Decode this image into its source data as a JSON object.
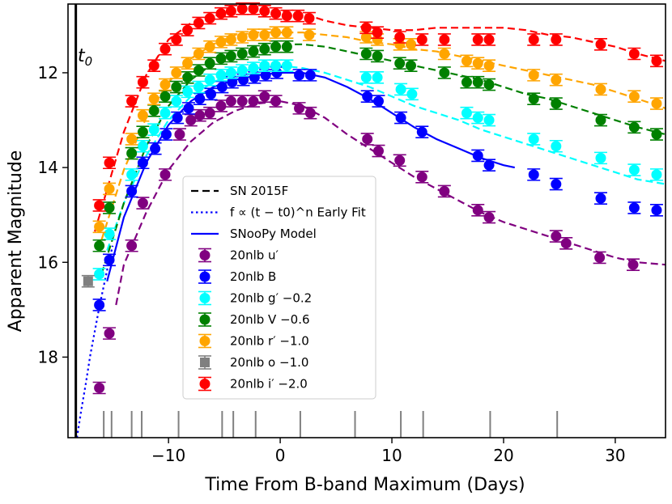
{
  "chart_data": {
    "type": "scatter",
    "xlabel": "Time From B-band Maximum (Days)",
    "ylabel": "Apparent Magnitude",
    "xlim": [
      -19,
      34.5
    ],
    "ylim": [
      19.7,
      10.55
    ],
    "y_inverted": true,
    "grid": false,
    "x_ticks": [
      -10,
      0,
      10,
      20,
      30
    ],
    "x_tick_labels": [
      "−10",
      "0",
      "10",
      "20",
      "30"
    ],
    "y_ticks": [
      12,
      14,
      16,
      18
    ],
    "y_tick_labels": [
      "12",
      "14",
      "16",
      "18"
    ],
    "t0_marker": {
      "x": -18.3,
      "label": "t0"
    },
    "spectra_epochs": [
      -15.8,
      -15.1,
      -13.3,
      -12.4,
      -9.1,
      -5.2,
      -4.2,
      -2.2,
      1.8,
      6.7,
      10.8,
      12.8,
      18.8,
      24.8
    ],
    "legend": {
      "position": "center-left",
      "entries": [
        {
          "label": "SN 2015F",
          "style": "dashed",
          "color": "#000000"
        },
        {
          "label": "f ∝ (t − t0)^n Early Fit",
          "style": "dotted",
          "color": "#0000ff"
        },
        {
          "label": "SNooPy Model",
          "style": "solid",
          "color": "#0000ff"
        },
        {
          "label": "20nlb u′",
          "marker": "circle",
          "color": "#800080"
        },
        {
          "label": "20nlb B",
          "marker": "circle",
          "color": "#0000ff"
        },
        {
          "label": "20nlb g′ −0.2",
          "marker": "circle",
          "color": "#00ffff"
        },
        {
          "label": "20nlb V −0.6",
          "marker": "circle",
          "color": "#008000"
        },
        {
          "label": "20nlb r′ −1.0",
          "marker": "circle",
          "color": "#ffa500"
        },
        {
          "label": "20nlb o −1.0",
          "marker": "square",
          "color": "#808080"
        },
        {
          "label": "20nlb i′ −2.0",
          "marker": "circle",
          "color": "#ff0000"
        }
      ]
    },
    "series": [
      {
        "name": "20nlb u′",
        "color": "#800080",
        "marker": "circle",
        "x": [
          -16.2,
          -15.3,
          -13.3,
          -12.3,
          -10.3,
          -9.0,
          -8.0,
          -7.2,
          -6.3,
          -5.3,
          -4.4,
          -3.4,
          -2.4,
          -1.4,
          -0.4,
          1.7,
          2.7,
          7.8,
          8.8,
          10.7,
          12.7,
          14.7,
          17.7,
          18.7,
          24.7,
          25.6,
          28.6,
          31.6
        ],
        "y": [
          18.65,
          17.5,
          15.65,
          14.75,
          14.15,
          13.3,
          13.0,
          12.9,
          12.85,
          12.7,
          12.6,
          12.6,
          12.6,
          12.5,
          12.6,
          12.75,
          12.85,
          13.4,
          13.65,
          13.85,
          14.2,
          14.5,
          14.9,
          15.05,
          15.45,
          15.6,
          15.9,
          16.05
        ],
        "curve_x": [
          -14.7,
          -14,
          -12,
          -10,
          -8,
          -6,
          -4,
          -2,
          0,
          2,
          4,
          6,
          8,
          10,
          12,
          14,
          16,
          18,
          20,
          22,
          24,
          26,
          28,
          30,
          32,
          34.5
        ],
        "curve_y": [
          16.9,
          16.05,
          14.95,
          14.05,
          13.45,
          13.05,
          12.8,
          12.65,
          12.6,
          12.7,
          12.95,
          13.3,
          13.6,
          13.9,
          14.2,
          14.45,
          14.7,
          14.95,
          15.15,
          15.3,
          15.45,
          15.6,
          15.75,
          15.9,
          16.0,
          16.05
        ]
      },
      {
        "name": "20nlb B",
        "color": "#0000ff",
        "marker": "circle",
        "x": [
          -16.2,
          -15.3,
          -13.3,
          -12.3,
          -11.2,
          -10.2,
          -9.2,
          -8.2,
          -7.2,
          -6.2,
          -5.2,
          -4.3,
          -3.3,
          -2.3,
          -1.3,
          -0.3,
          1.7,
          2.7,
          7.8,
          8.8,
          10.8,
          12.7,
          17.7,
          18.7,
          22.7,
          24.7,
          28.7,
          31.7,
          33.7
        ],
        "y": [
          16.9,
          15.95,
          14.5,
          13.9,
          13.6,
          13.3,
          12.95,
          12.75,
          12.55,
          12.45,
          12.3,
          12.2,
          12.15,
          12.1,
          12.05,
          12.0,
          12.05,
          12.05,
          12.5,
          12.6,
          12.95,
          13.25,
          13.75,
          13.95,
          14.15,
          14.35,
          14.65,
          14.85,
          14.9
        ]
      },
      {
        "name": "20nlb g′ −0.2",
        "color": "#00ffff",
        "marker": "circle",
        "x": [
          -16.2,
          -15.3,
          -13.3,
          -12.3,
          -11.3,
          -10.3,
          -9.3,
          -8.3,
          -7.3,
          -6.3,
          -5.3,
          -4.4,
          -3.4,
          -2.4,
          -1.4,
          -0.4,
          0.6,
          7.7,
          8.7,
          10.8,
          11.8,
          16.7,
          17.7,
          18.7,
          22.7,
          24.7,
          28.7,
          31.7,
          33.7
        ],
        "y": [
          16.25,
          15.4,
          14.15,
          13.55,
          13.2,
          12.85,
          12.6,
          12.4,
          12.3,
          12.15,
          12.05,
          12.0,
          11.95,
          11.9,
          11.85,
          11.85,
          11.85,
          12.1,
          12.1,
          12.35,
          12.45,
          12.85,
          12.95,
          13.0,
          13.4,
          13.55,
          13.8,
          14.05,
          14.15
        ],
        "curve_x": [
          -15.5,
          -14,
          -12,
          -10,
          -8,
          -6,
          -4,
          -2,
          0,
          2,
          4,
          6,
          8,
          10,
          12,
          14,
          16,
          18,
          20,
          22,
          24,
          26,
          28,
          30,
          32,
          34.5
        ],
        "curve_y": [
          15.75,
          14.75,
          13.75,
          13.0,
          12.5,
          12.2,
          12.0,
          11.9,
          11.85,
          11.9,
          12.0,
          12.15,
          12.3,
          12.5,
          12.7,
          12.85,
          13.0,
          13.2,
          13.35,
          13.5,
          13.65,
          13.8,
          13.95,
          14.1,
          14.25,
          14.35
        ]
      },
      {
        "name": "20nlb V −0.6",
        "color": "#008000",
        "marker": "circle",
        "x": [
          -16.2,
          -15.3,
          -13.3,
          -12.3,
          -11.3,
          -10.3,
          -9.3,
          -8.3,
          -7.3,
          -6.3,
          -5.3,
          -4.4,
          -3.4,
          -2.4,
          -1.4,
          -0.4,
          0.6,
          7.7,
          8.7,
          10.7,
          11.7,
          14.7,
          16.7,
          17.7,
          18.7,
          22.7,
          24.7,
          28.7,
          31.7,
          33.7
        ],
        "y": [
          15.65,
          14.85,
          13.7,
          13.25,
          12.8,
          12.5,
          12.3,
          12.1,
          11.95,
          11.8,
          11.7,
          11.65,
          11.6,
          11.55,
          11.5,
          11.45,
          11.45,
          11.6,
          11.65,
          11.8,
          11.85,
          12.0,
          12.2,
          12.2,
          12.25,
          12.55,
          12.65,
          13.0,
          13.15,
          13.3
        ],
        "curve_x": [
          -16,
          -14,
          -12,
          -10,
          -8,
          -6,
          -4,
          -2,
          0,
          2,
          4,
          6,
          8,
          10,
          12,
          14,
          16,
          18,
          20,
          22,
          24,
          26,
          28,
          30,
          32,
          34.5
        ],
        "curve_y": [
          16.25,
          14.75,
          13.55,
          12.7,
          12.15,
          11.8,
          11.6,
          11.45,
          11.4,
          11.4,
          11.45,
          11.55,
          11.65,
          11.75,
          11.85,
          11.95,
          12.05,
          12.15,
          12.3,
          12.45,
          12.55,
          12.7,
          12.85,
          13.0,
          13.15,
          13.3
        ]
      },
      {
        "name": "20nlb r′ −1.0",
        "color": "#ffa500",
        "marker": "circle",
        "x": [
          -16.2,
          -15.3,
          -13.3,
          -12.3,
          -11.3,
          -10.3,
          -9.3,
          -8.3,
          -7.3,
          -6.3,
          -5.3,
          -4.4,
          -3.4,
          -2.4,
          -1.4,
          -0.4,
          0.6,
          2.6,
          7.7,
          8.7,
          10.7,
          11.7,
          14.7,
          16.7,
          17.7,
          18.7,
          22.7,
          24.7,
          28.7,
          31.7,
          33.7
        ],
        "y": [
          15.25,
          14.45,
          13.4,
          12.9,
          12.55,
          12.25,
          12.0,
          11.8,
          11.6,
          11.45,
          11.35,
          11.3,
          11.25,
          11.2,
          11.2,
          11.15,
          11.15,
          11.2,
          11.25,
          11.3,
          11.4,
          11.4,
          11.6,
          11.75,
          11.8,
          11.85,
          12.05,
          12.15,
          12.35,
          12.5,
          12.65
        ],
        "curve_x": [
          -16.3,
          -14,
          -12,
          -10,
          -8,
          -6,
          -4,
          -2,
          0,
          2,
          4,
          6,
          8,
          10,
          12,
          14,
          16,
          18,
          20,
          22,
          24,
          26,
          28,
          30,
          32,
          34.5
        ],
        "curve_y": [
          15.75,
          14.05,
          12.95,
          12.2,
          11.7,
          11.4,
          11.2,
          11.15,
          11.15,
          11.15,
          11.2,
          11.25,
          11.35,
          11.4,
          11.5,
          11.55,
          11.65,
          11.75,
          11.85,
          11.95,
          12.05,
          12.15,
          12.25,
          12.4,
          12.55,
          12.75
        ]
      },
      {
        "name": "20nlb o −1.0",
        "color": "#808080",
        "marker": "square",
        "x": [
          -17.2
        ],
        "y": [
          16.4
        ]
      },
      {
        "name": "20nlb i′ −2.0",
        "color": "#ff0000",
        "marker": "circle",
        "x": [
          -16.2,
          -15.3,
          -13.3,
          -12.3,
          -11.3,
          -10.3,
          -9.3,
          -8.3,
          -7.3,
          -6.3,
          -5.3,
          -4.4,
          -3.4,
          -2.4,
          -1.4,
          -0.4,
          0.6,
          1.6,
          2.6,
          7.7,
          8.7,
          10.7,
          12.7,
          14.7,
          17.7,
          18.7,
          22.7,
          24.7,
          28.7,
          31.7,
          33.7
        ],
        "y": [
          14.8,
          13.9,
          12.6,
          12.2,
          11.85,
          11.5,
          11.3,
          11.1,
          10.95,
          10.85,
          10.75,
          10.7,
          10.65,
          10.65,
          10.7,
          10.75,
          10.8,
          10.8,
          10.85,
          11.05,
          11.15,
          11.25,
          11.3,
          11.3,
          11.3,
          11.3,
          11.3,
          11.3,
          11.4,
          11.6,
          11.75
        ],
        "curve_x": [
          -16.6,
          -14,
          -12,
          -10,
          -8,
          -6,
          -4,
          -2,
          0,
          2,
          4,
          6,
          8,
          10,
          12,
          14,
          16,
          18,
          20,
          22,
          24,
          26,
          28,
          30,
          32,
          34.5
        ],
        "curve_y": [
          15.35,
          13.25,
          12.05,
          11.3,
          10.95,
          10.8,
          10.7,
          10.65,
          10.7,
          10.75,
          10.9,
          11.0,
          11.05,
          11.1,
          11.1,
          11.05,
          11.05,
          11.05,
          11.05,
          11.1,
          11.2,
          11.25,
          11.35,
          11.45,
          11.6,
          11.75
        ]
      }
    ],
    "models": [
      {
        "name": "SNooPy Model",
        "color": "#0000ff",
        "style": "solid",
        "x": [
          -15.5,
          -14,
          -12,
          -10,
          -8,
          -6,
          -4,
          -2,
          0,
          2,
          4,
          6,
          8,
          10,
          12,
          14,
          16,
          18,
          20,
          21
        ],
        "y": [
          16.4,
          15.05,
          13.9,
          13.1,
          12.6,
          12.3,
          12.15,
          12.05,
          12.0,
          12.0,
          12.1,
          12.3,
          12.55,
          12.85,
          13.15,
          13.4,
          13.6,
          13.8,
          13.95,
          14.0
        ]
      },
      {
        "name": "Early Fit",
        "color": "#0000ff",
        "style": "dotted",
        "x": [
          -18.2,
          -17.8,
          -17.4,
          -17,
          -16.6,
          -16.2,
          -15.8,
          -15.4,
          -15.0
        ],
        "y": [
          19.7,
          19.1,
          18.55,
          17.95,
          17.45,
          16.95,
          16.5,
          16.05,
          15.65
        ]
      }
    ]
  }
}
